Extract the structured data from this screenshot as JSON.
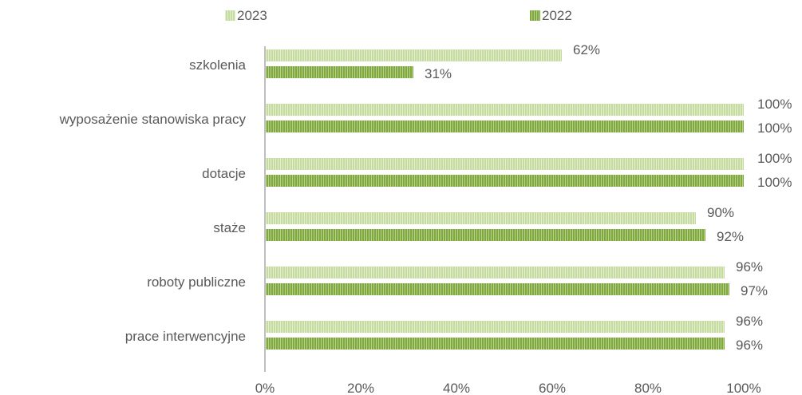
{
  "chart_data": {
    "type": "bar",
    "orientation": "horizontal",
    "categories": [
      "szkolenia",
      "wyposażenie stanowiska pracy",
      "dotacje",
      "staże",
      "roboty publiczne",
      "prace interwencyjne"
    ],
    "series": [
      {
        "name": "2023",
        "values": [
          62,
          100,
          100,
          90,
          96,
          96
        ],
        "labels": [
          "62%",
          "100%",
          "100%",
          "90%",
          "96%",
          "96%"
        ],
        "color": "#c5dba0"
      },
      {
        "name": "2022",
        "values": [
          31,
          100,
          100,
          92,
          97,
          96
        ],
        "labels": [
          "31%",
          "100%",
          "100%",
          "92%",
          "97%",
          "96%"
        ],
        "color": "#7fa83f"
      }
    ],
    "x_ticks": [
      "0%",
      "20%",
      "40%",
      "60%",
      "80%",
      "100%"
    ],
    "xlim": [
      0,
      100
    ],
    "grid": false,
    "legend_position": "top"
  }
}
